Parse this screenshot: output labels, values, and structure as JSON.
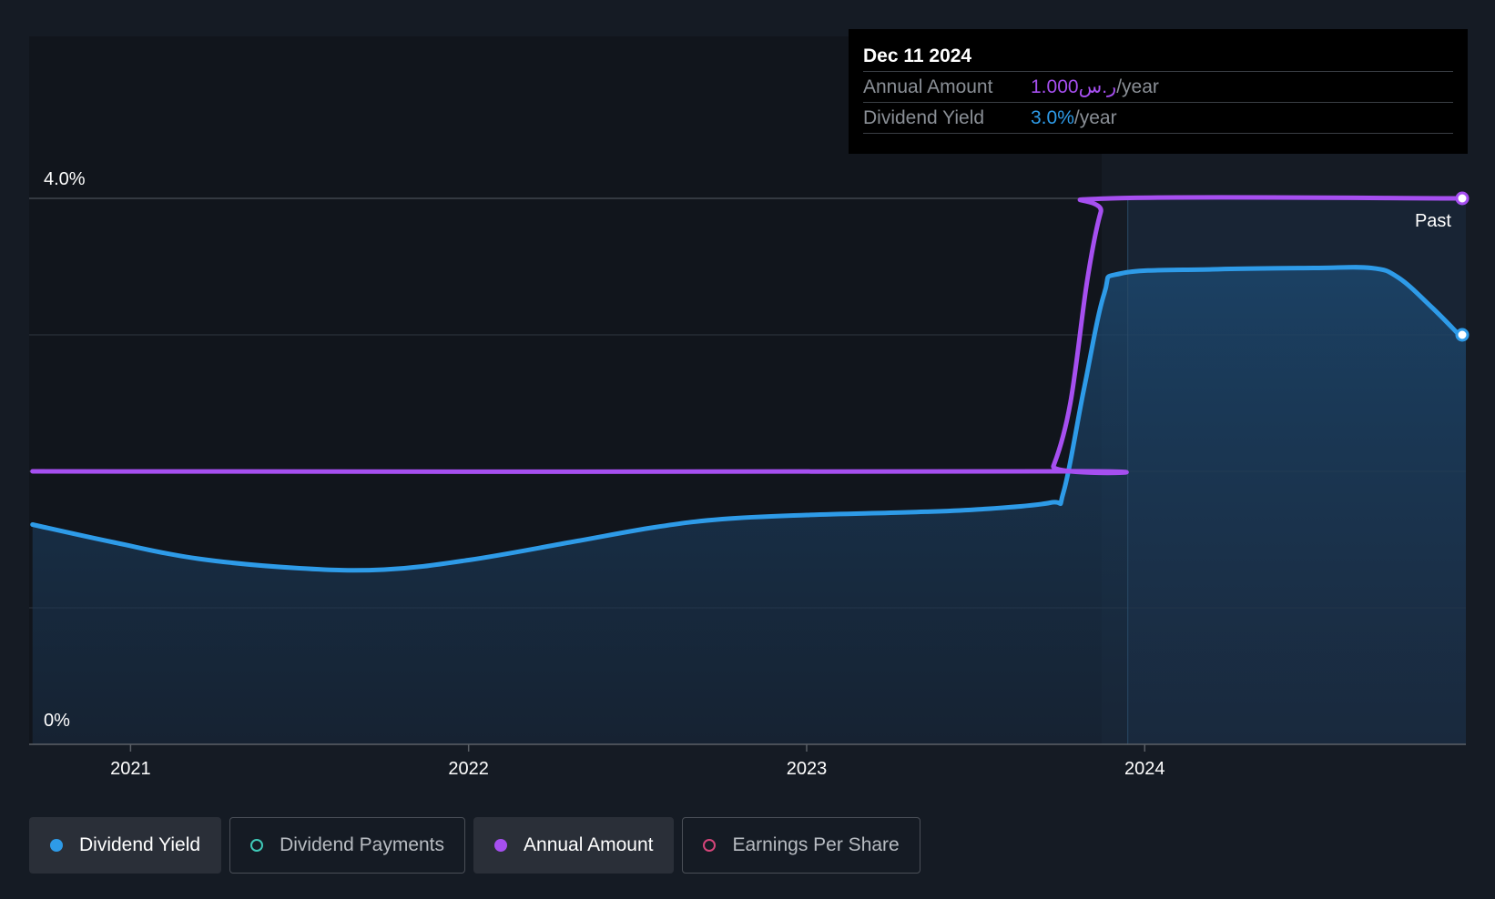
{
  "chart_data": {
    "type": "line",
    "x_range": [
      2020.7,
      2024.95
    ],
    "y_range": [
      0,
      4.0
    ],
    "y_tick_labels": [
      "4.0%",
      "0%"
    ],
    "x_ticks": [
      {
        "value": 2021,
        "label": "2021"
      },
      {
        "value": 2022,
        "label": "2022"
      },
      {
        "value": 2023,
        "label": "2023"
      },
      {
        "value": 2024,
        "label": "2024"
      }
    ],
    "past_start": 2023.95,
    "past_label": "Past",
    "series": [
      {
        "name": "Dividend Yield",
        "color": "#2e9be8",
        "area": true,
        "points": [
          [
            2020.71,
            1.61
          ],
          [
            2020.95,
            1.48
          ],
          [
            2021.2,
            1.36
          ],
          [
            2021.5,
            1.29
          ],
          [
            2021.75,
            1.28
          ],
          [
            2022.0,
            1.35
          ],
          [
            2022.3,
            1.48
          ],
          [
            2022.55,
            1.59
          ],
          [
            2022.75,
            1.65
          ],
          [
            2023.0,
            1.68
          ],
          [
            2023.3,
            1.7
          ],
          [
            2023.5,
            1.72
          ],
          [
            2023.72,
            1.77
          ],
          [
            2023.76,
            1.85
          ],
          [
            2023.82,
            2.6
          ],
          [
            2023.88,
            3.3
          ],
          [
            2023.93,
            3.45
          ],
          [
            2024.2,
            3.48
          ],
          [
            2024.5,
            3.49
          ],
          [
            2024.67,
            3.49
          ],
          [
            2024.75,
            3.42
          ],
          [
            2024.85,
            3.2
          ],
          [
            2024.93,
            3.0
          ]
        ]
      },
      {
        "name": "Annual Amount",
        "color": "#a64ff0",
        "area": false,
        "points": [
          [
            2020.71,
            2.0
          ],
          [
            2023.7,
            2.0
          ],
          [
            2023.73,
            2.04
          ],
          [
            2023.78,
            2.5
          ],
          [
            2023.83,
            3.4
          ],
          [
            2023.87,
            3.9
          ],
          [
            2023.9,
            4.0
          ],
          [
            2024.95,
            4.0
          ]
        ]
      }
    ]
  },
  "tooltip": {
    "date": "Dec 11 2024",
    "annual_amount_label": "Annual Amount",
    "annual_amount_value": "1.000ر.س",
    "annual_amount_unit": "/year",
    "dividend_yield_label": "Dividend Yield",
    "dividend_yield_value": "3.0%",
    "dividend_yield_unit": "/year"
  },
  "legend": [
    {
      "label": "Dividend Yield",
      "color": "#2e9be8",
      "active": true
    },
    {
      "label": "Dividend Payments",
      "color": "#3fc9b8",
      "active": false
    },
    {
      "label": "Annual Amount",
      "color": "#a64ff0",
      "active": true
    },
    {
      "label": "Earnings Per Share",
      "color": "#d4457a",
      "active": false
    }
  ]
}
